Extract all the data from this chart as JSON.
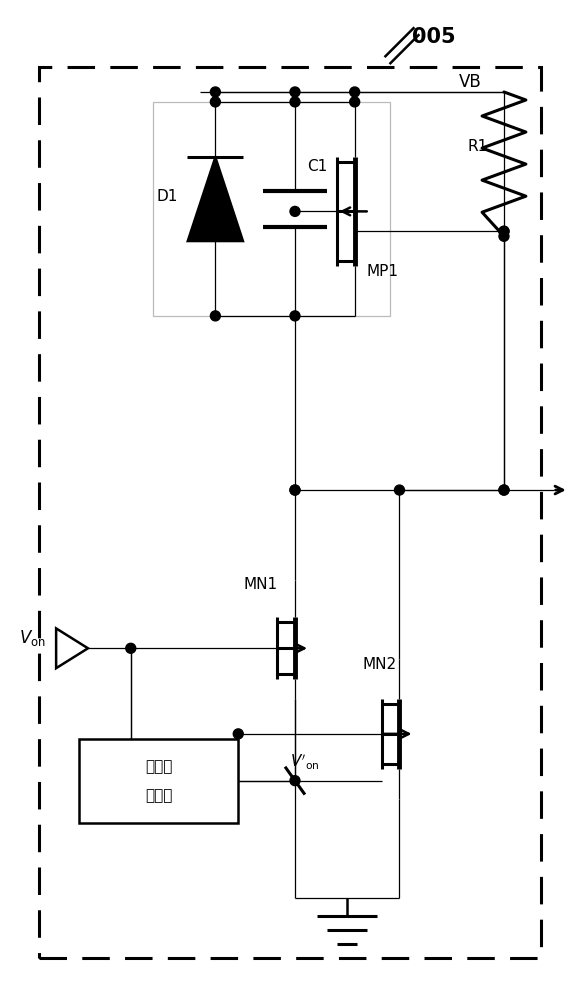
{
  "title": "005",
  "label_VB": "VB",
  "label_R1": "R1",
  "label_D1": "D1",
  "label_C1": "C1",
  "label_MP1": "MP1",
  "label_MN1": "MN1",
  "label_MN2": "MN2",
  "label_Von": "$V_{\\mathrm{on}}$",
  "label_Von_prime": "$V^{\\prime}_{\\mathrm{on}}$",
  "label_delay_1": "第一延",
  "label_delay_2": "时单元",
  "line_color": "#000000",
  "thin_line_color": "#999999",
  "background": "#ffffff"
}
